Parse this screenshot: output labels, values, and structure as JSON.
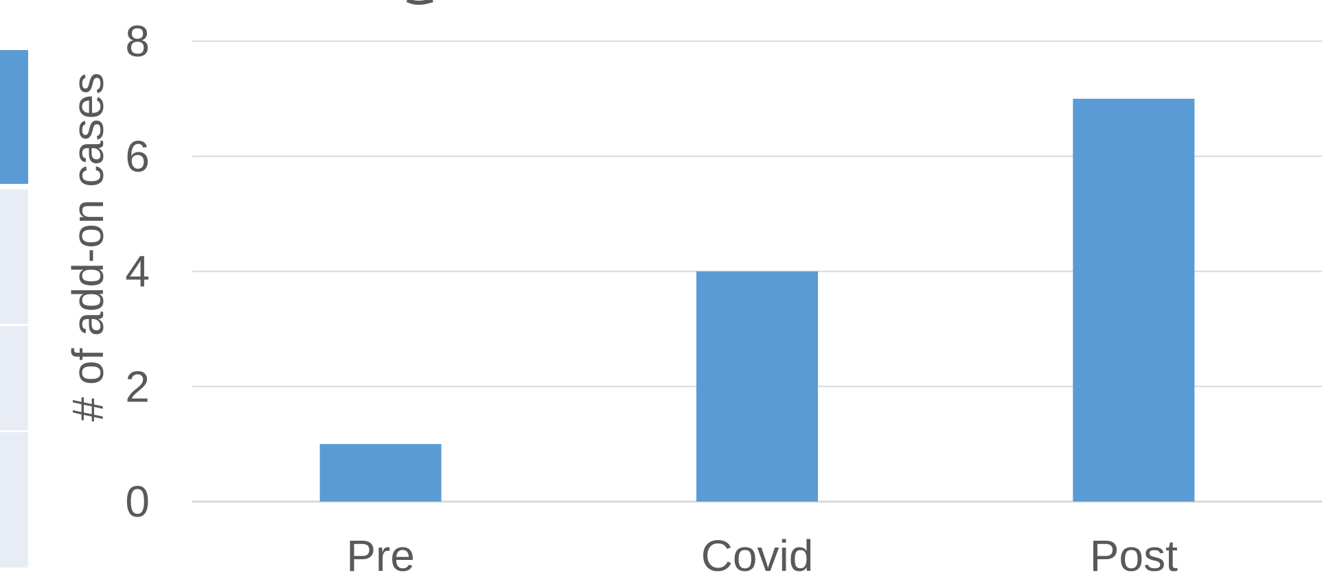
{
  "chart_data": {
    "type": "bar",
    "title": "",
    "xlabel": "",
    "ylabel": "# of add-on cases",
    "categories": [
      "Pre",
      "Covid",
      "Post"
    ],
    "values": [
      1,
      4,
      7
    ],
    "ylim": [
      0,
      8
    ],
    "yticks": [
      "0",
      "2",
      "4",
      "6",
      "8"
    ],
    "grid": true,
    "legend": "none",
    "colors": {
      "bar": "#5B9BD5",
      "grid": "#D9D9D9",
      "text": "#595959",
      "side_strip_dark": "#5B9BD5",
      "side_strip_light": "#E8ECF5"
    }
  }
}
